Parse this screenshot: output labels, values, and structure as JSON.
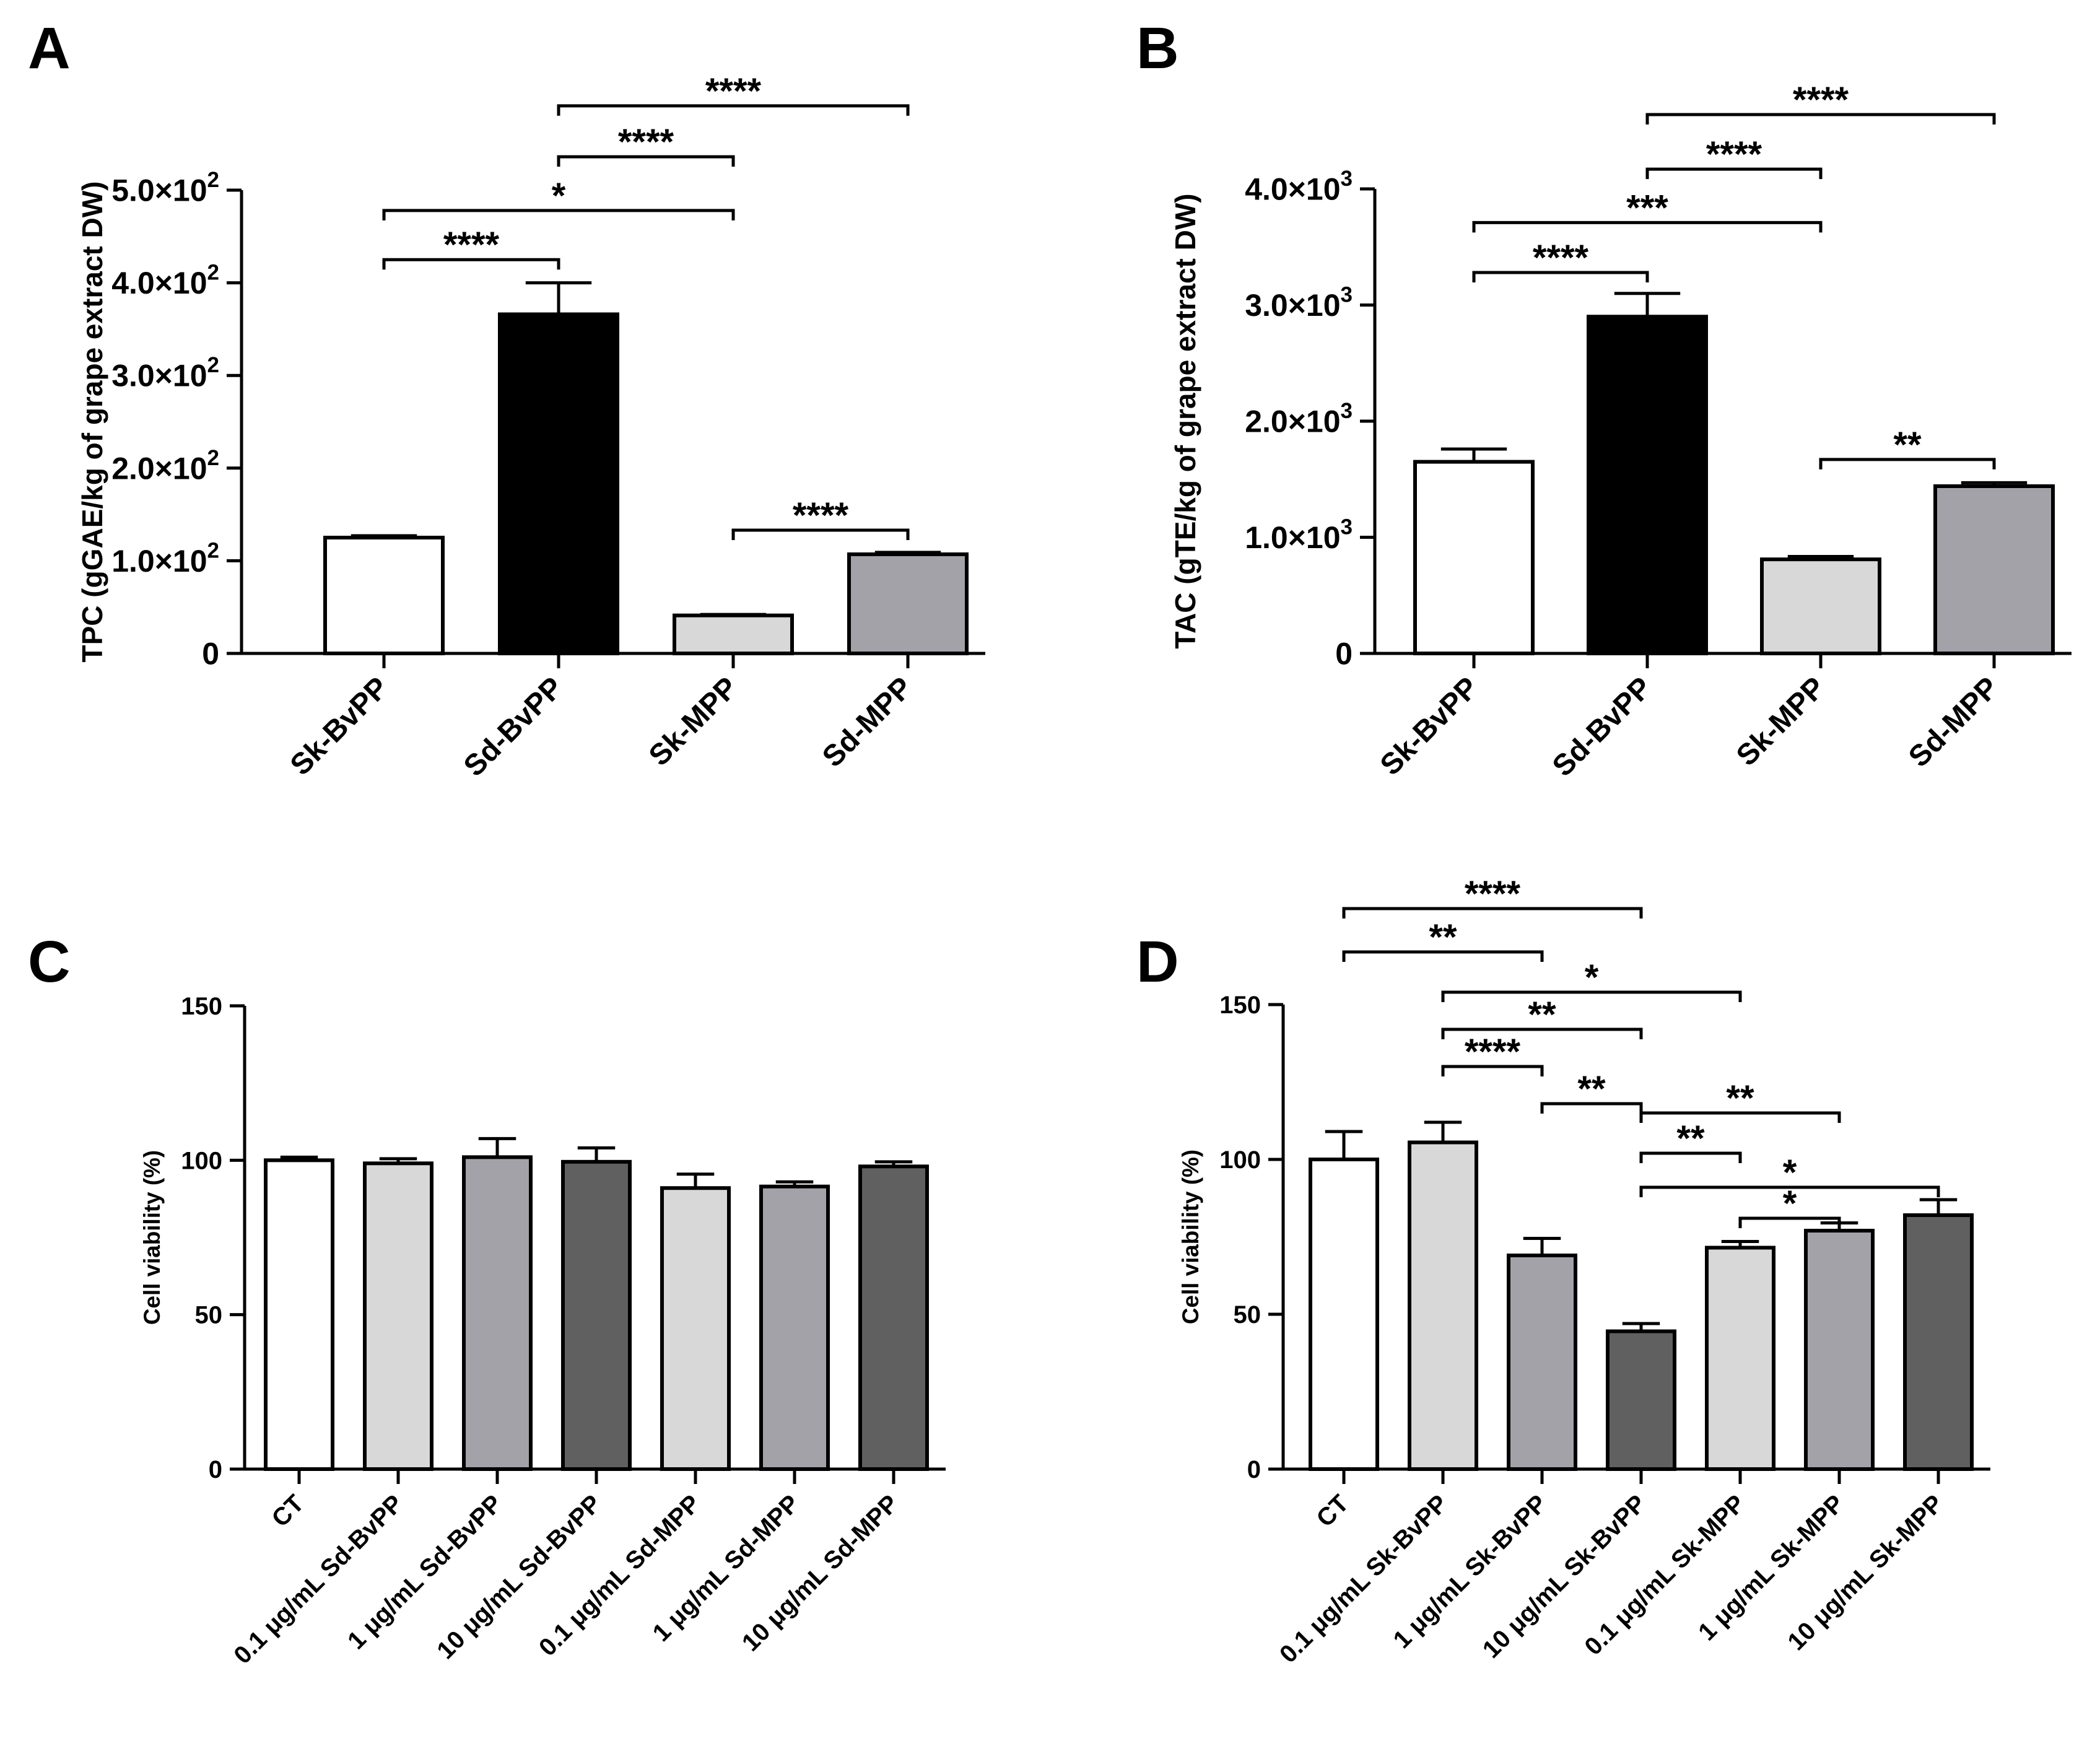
{
  "figure": {
    "panel_labels": [
      "A",
      "B",
      "C",
      "D"
    ]
  },
  "chart_data": [
    {
      "id": "A",
      "type": "bar",
      "ylabel": "TPC (gGAE/kg of grape extract DW)",
      "ylim": [
        0,
        500
      ],
      "yticks": [
        {
          "value": 0,
          "label": "0"
        },
        {
          "value": 100,
          "label": "1.0×10",
          "sup": "2"
        },
        {
          "value": 200,
          "label": "2.0×10",
          "sup": "2"
        },
        {
          "value": 300,
          "label": "3.0×10",
          "sup": "2"
        },
        {
          "value": 400,
          "label": "4.0×10",
          "sup": "2"
        },
        {
          "value": 500,
          "label": "5.0×10",
          "sup": "2"
        }
      ],
      "categories": [
        "Sk-BvPP",
        "Sd-BvPP",
        "Sk-MPP",
        "Sd-MPP"
      ],
      "values": [
        125,
        366,
        41,
        107
      ],
      "errors": [
        2,
        34,
        1,
        2
      ],
      "colors": [
        "#ffffff",
        "#000000",
        "#d8d8d8",
        "#a3a2a8"
      ],
      "significance": [
        {
          "from": 0,
          "to": 1,
          "label": "****",
          "y": 425
        },
        {
          "from": 0,
          "to": 2,
          "label": "*",
          "y": 478
        },
        {
          "from": 1,
          "to": 2,
          "label": "****",
          "y": 536
        },
        {
          "from": 1,
          "to": 3,
          "label": "****",
          "y": 591
        },
        {
          "from": 2,
          "to": 3,
          "label": "****",
          "y": 133
        }
      ]
    },
    {
      "id": "B",
      "type": "bar",
      "ylabel": "TAC (gTE/kg of grape extract DW)",
      "ylim": [
        0,
        4000
      ],
      "yticks": [
        {
          "value": 0,
          "label": "0"
        },
        {
          "value": 1000,
          "label": "1.0×10",
          "sup": "3"
        },
        {
          "value": 2000,
          "label": "2.0×10",
          "sup": "3"
        },
        {
          "value": 3000,
          "label": "3.0×10",
          "sup": "3"
        },
        {
          "value": 4000,
          "label": "4.0×10",
          "sup": "3"
        }
      ],
      "categories": [
        "Sk-BvPP",
        "Sd-BvPP",
        "Sk-MPP",
        "Sd-MPP"
      ],
      "values": [
        1650,
        2900,
        810,
        1440
      ],
      "errors": [
        110,
        200,
        25,
        30
      ],
      "colors": [
        "#ffffff",
        "#000000",
        "#d8d8d8",
        "#a3a2a8"
      ],
      "significance": [
        {
          "from": 0,
          "to": 1,
          "label": "****",
          "y": 3280
        },
        {
          "from": 0,
          "to": 2,
          "label": "***",
          "y": 3710
        },
        {
          "from": 1,
          "to": 2,
          "label": "****",
          "y": 4170
        },
        {
          "from": 1,
          "to": 3,
          "label": "****",
          "y": 4640
        },
        {
          "from": 2,
          "to": 3,
          "label": "**",
          "y": 1670
        }
      ]
    },
    {
      "id": "C",
      "type": "bar",
      "ylabel": "Cell viability (%)",
      "ylim": [
        0,
        150
      ],
      "yticks": [
        {
          "value": 0,
          "label": "0"
        },
        {
          "value": 50,
          "label": "50"
        },
        {
          "value": 100,
          "label": "100"
        },
        {
          "value": 150,
          "label": "150"
        }
      ],
      "categories": [
        "CT",
        "0.1 μg/mL Sd-BvPP",
        "1 μg/mL Sd-BvPP",
        "10 μg/mL Sd-BvPP",
        "0.1 μg/mL Sd-MPP",
        "1 μg/mL Sd-MPP",
        "10 μg/mL Sd-MPP"
      ],
      "values": [
        100,
        99,
        101,
        99.5,
        91,
        91.5,
        98
      ],
      "errors": [
        1,
        1.5,
        6,
        4.5,
        4.5,
        1.5,
        1.5
      ],
      "colors": [
        "#ffffff",
        "#d8d8d8",
        "#a3a2a8",
        "#606060",
        "#d8d8d8",
        "#a3a2a8",
        "#606060"
      ],
      "significance": []
    },
    {
      "id": "D",
      "type": "bar",
      "ylabel": "Cell viability (%)",
      "ylim": [
        0,
        150
      ],
      "yticks": [
        {
          "value": 0,
          "label": "0"
        },
        {
          "value": 50,
          "label": "50"
        },
        {
          "value": 100,
          "label": "100"
        },
        {
          "value": 150,
          "label": "150"
        }
      ],
      "categories": [
        "CT",
        "0.1 μg/mL Sk-BvPP",
        "1 μg/mL Sk-BvPP",
        "10 μg/mL Sk-BvPP",
        "0.1 μg/mL Sk-MPP",
        "1 μg/mL Sk-MPP",
        "10 μg/mL Sk-MPP"
      ],
      "values": [
        100,
        105.5,
        69,
        44.5,
        71.5,
        77,
        82
      ],
      "errors": [
        9,
        6.5,
        5.5,
        2.5,
        2,
        2.5,
        5
      ],
      "colors": [
        "#ffffff",
        "#d8d8d8",
        "#a3a2a8",
        "#606060",
        "#d8d8d8",
        "#a3a2a8",
        "#606060"
      ],
      "significance": [
        {
          "from": 0,
          "to": 3,
          "label": "****",
          "y": 181
        },
        {
          "from": 0,
          "to": 2,
          "label": "**",
          "y": 167
        },
        {
          "from": 1,
          "to": 4,
          "label": "*",
          "y": 154
        },
        {
          "from": 1,
          "to": 3,
          "label": "**",
          "y": 142
        },
        {
          "from": 1,
          "to": 2,
          "label": "****",
          "y": 130
        },
        {
          "from": 2,
          "to": 3,
          "label": "**",
          "y": 118
        },
        {
          "from": 3,
          "to": 5,
          "label": "**",
          "y": 115
        },
        {
          "from": 3,
          "to": 4,
          "label": "**",
          "y": 102
        },
        {
          "from": 3,
          "to": 6,
          "label": "*",
          "y": 91
        },
        {
          "from": 4,
          "to": 5,
          "label": "*",
          "y": 81
        }
      ]
    }
  ]
}
